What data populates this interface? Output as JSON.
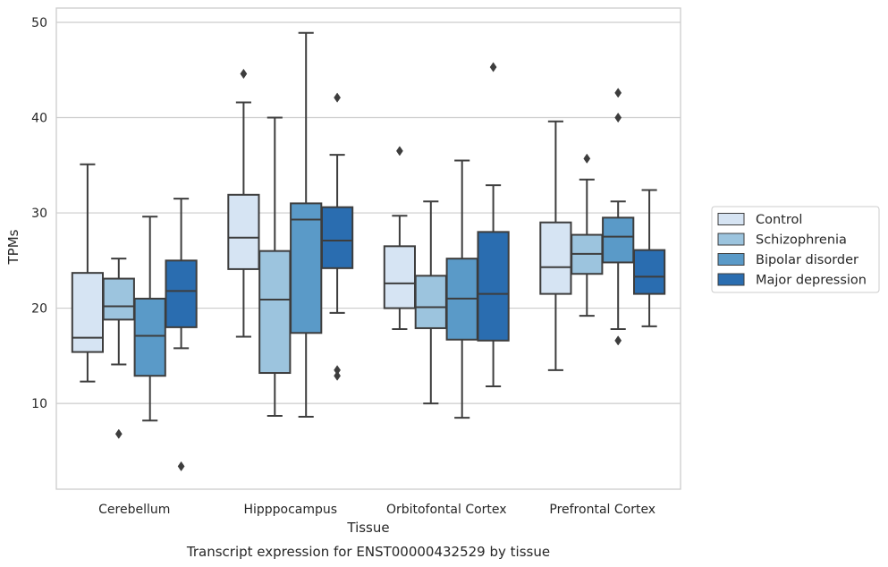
{
  "chart_data": {
    "type": "box",
    "title": "Transcript expression for ENST00000432529 by tissue",
    "xlabel": "Tissue",
    "ylabel": "TPMs",
    "ylim": [
      1,
      51.5
    ],
    "yticks": [
      10,
      20,
      30,
      40,
      50
    ],
    "grid": "horizontal",
    "legend_position": "right",
    "categories": [
      "Cerebellum",
      "Hipppocampus",
      "Orbitofontal Cortex",
      "Prefrontal Cortex"
    ],
    "series": [
      {
        "name": "Control",
        "color": "#d6e4f3",
        "boxes": [
          {
            "whisker_low": 12.3,
            "q1": 15.4,
            "median": 16.9,
            "q3": 23.7,
            "whisker_high": 35.1,
            "outliers": []
          },
          {
            "whisker_low": 17.0,
            "q1": 24.1,
            "median": 27.4,
            "q3": 31.9,
            "whisker_high": 41.6,
            "outliers": [
              44.6
            ]
          },
          {
            "whisker_low": 17.8,
            "q1": 20.0,
            "median": 22.6,
            "q3": 26.5,
            "whisker_high": 29.7,
            "outliers": [
              36.5
            ]
          },
          {
            "whisker_low": 13.5,
            "q1": 21.5,
            "median": 24.3,
            "q3": 29.0,
            "whisker_high": 39.6,
            "outliers": []
          }
        ]
      },
      {
        "name": "Schizophrenia",
        "color": "#9cc4de",
        "boxes": [
          {
            "whisker_low": 14.1,
            "q1": 18.8,
            "median": 20.2,
            "q3": 23.1,
            "whisker_high": 25.2,
            "outliers": [
              6.8
            ]
          },
          {
            "whisker_low": 8.7,
            "q1": 13.2,
            "median": 20.9,
            "q3": 26.0,
            "whisker_high": 40.0,
            "outliers": []
          },
          {
            "whisker_low": 10.0,
            "q1": 17.9,
            "median": 20.1,
            "q3": 23.4,
            "whisker_high": 31.2,
            "outliers": []
          },
          {
            "whisker_low": 19.2,
            "q1": 23.6,
            "median": 25.7,
            "q3": 27.7,
            "whisker_high": 33.5,
            "outliers": [
              35.7
            ]
          }
        ]
      },
      {
        "name": "Bipolar disorder",
        "color": "#5a9ac8",
        "boxes": [
          {
            "whisker_low": 8.2,
            "q1": 12.9,
            "median": 17.1,
            "q3": 21.0,
            "whisker_high": 29.6,
            "outliers": []
          },
          {
            "whisker_low": 8.6,
            "q1": 17.4,
            "median": 29.3,
            "q3": 31.0,
            "whisker_high": 48.9,
            "outliers": []
          },
          {
            "whisker_low": 8.5,
            "q1": 16.7,
            "median": 21.0,
            "q3": 25.2,
            "whisker_high": 35.5,
            "outliers": []
          },
          {
            "whisker_low": 17.8,
            "q1": 24.8,
            "median": 27.5,
            "q3": 29.5,
            "whisker_high": 31.2,
            "outliers": [
              16.6,
              40.0,
              42.6
            ]
          }
        ]
      },
      {
        "name": "Major depression",
        "color": "#2a6db0",
        "boxes": [
          {
            "whisker_low": 15.8,
            "q1": 18.0,
            "median": 21.8,
            "q3": 25.0,
            "whisker_high": 31.5,
            "outliers": [
              3.4
            ]
          },
          {
            "whisker_low": 19.5,
            "q1": 24.2,
            "median": 27.1,
            "q3": 30.6,
            "whisker_high": 36.1,
            "outliers": [
              12.9,
              13.5,
              42.1
            ]
          },
          {
            "whisker_low": 11.8,
            "q1": 16.6,
            "median": 21.5,
            "q3": 28.0,
            "whisker_high": 32.9,
            "outliers": [
              45.3
            ]
          },
          {
            "whisker_low": 18.1,
            "q1": 21.5,
            "median": 23.3,
            "q3": 26.1,
            "whisker_high": 32.4,
            "outliers": []
          }
        ]
      }
    ]
  }
}
